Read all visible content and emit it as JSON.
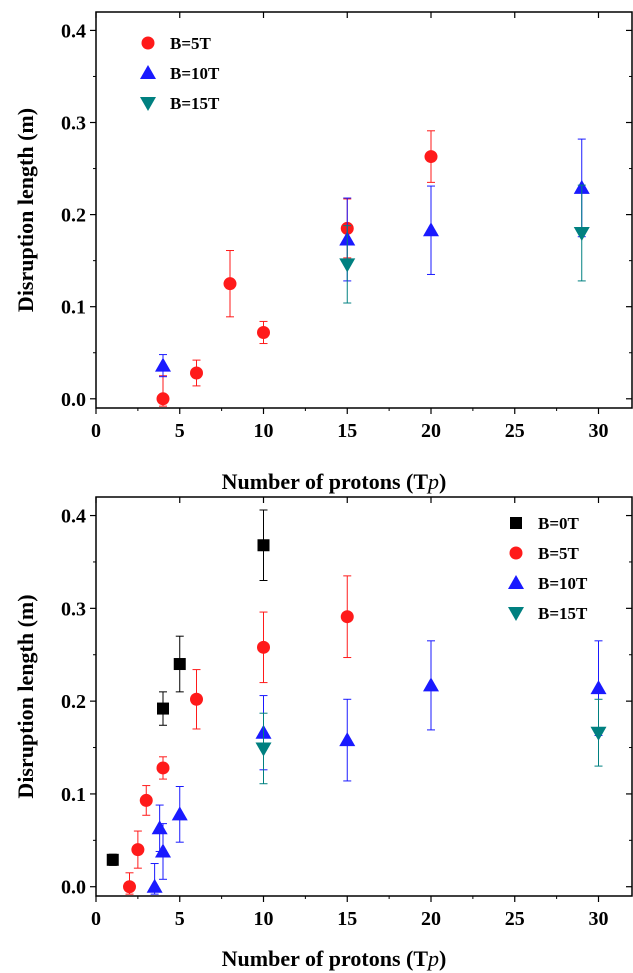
{
  "chart_data": [
    {
      "type": "scatter",
      "xlabel": "Number of protons (T",
      "xlabel_unit": "p",
      "xlabel_close": ")",
      "ylabel": "Disruption length (m)",
      "xlim": [
        0,
        32
      ],
      "ylim": [
        -0.01,
        0.42
      ],
      "xticks": [
        0,
        5,
        10,
        15,
        20,
        25,
        30
      ],
      "yticks": [
        0.0,
        0.1,
        0.2,
        0.3,
        0.4
      ],
      "xtick_labels": [
        "0",
        "5",
        "10",
        "15",
        "20",
        "25",
        "30"
      ],
      "ytick_labels": [
        "0.0",
        "0.1",
        "0.2",
        "0.3",
        "0.4"
      ],
      "legend_position": "top-left",
      "series": [
        {
          "name": "B=5T",
          "marker": "circle",
          "color": "#ff1a1a",
          "points": [
            {
              "x": 4,
              "y": 0.0,
              "err": 0.025
            },
            {
              "x": 6,
              "y": 0.028,
              "err": 0.014
            },
            {
              "x": 8,
              "y": 0.125,
              "err": 0.036
            },
            {
              "x": 10,
              "y": 0.072,
              "err": 0.012
            },
            {
              "x": 15,
              "y": 0.185,
              "err": 0.032
            },
            {
              "x": 20,
              "y": 0.263,
              "err": 0.028
            }
          ]
        },
        {
          "name": "B=10T",
          "marker": "triangle-up",
          "color": "#1a1aff",
          "points": [
            {
              "x": 4,
              "y": 0.036,
              "err": 0.012
            },
            {
              "x": 15,
              "y": 0.173,
              "err": 0.045
            },
            {
              "x": 20,
              "y": 0.183,
              "err": 0.048
            },
            {
              "x": 29,
              "y": 0.229,
              "err": 0.053
            }
          ]
        },
        {
          "name": "B=15T",
          "marker": "triangle-down",
          "color": "#008080",
          "points": [
            {
              "x": 15,
              "y": 0.146,
              "err": 0.042
            },
            {
              "x": 29,
              "y": 0.18,
              "err": 0.052
            }
          ]
        }
      ]
    },
    {
      "type": "scatter",
      "xlabel": "Number of protons (T",
      "xlabel_unit": "p",
      "xlabel_close": ")",
      "ylabel": "Disruption length (m)",
      "xlim": [
        0,
        32
      ],
      "ylim": [
        -0.01,
        0.42
      ],
      "xticks": [
        0,
        5,
        10,
        15,
        20,
        25,
        30
      ],
      "yticks": [
        0.0,
        0.1,
        0.2,
        0.3,
        0.4
      ],
      "xtick_labels": [
        "0",
        "5",
        "10",
        "15",
        "20",
        "25",
        "30"
      ],
      "ytick_labels": [
        "0.0",
        "0.1",
        "0.2",
        "0.3",
        "0.4"
      ],
      "legend_position": "top-right",
      "series": [
        {
          "name": "B=0T",
          "marker": "square",
          "color": "#000000",
          "points": [
            {
              "x": 1,
              "y": 0.029,
              "err": 0.006
            },
            {
              "x": 4,
              "y": 0.192,
              "err": 0.018
            },
            {
              "x": 5,
              "y": 0.24,
              "err": 0.03
            },
            {
              "x": 10,
              "y": 0.368,
              "err": 0.038
            }
          ]
        },
        {
          "name": "B=5T",
          "marker": "circle",
          "color": "#ff1a1a",
          "points": [
            {
              "x": 2,
              "y": 0.0,
              "err": 0.015
            },
            {
              "x": 2.5,
              "y": 0.04,
              "err": 0.02
            },
            {
              "x": 3,
              "y": 0.093,
              "err": 0.016
            },
            {
              "x": 4,
              "y": 0.128,
              "err": 0.012
            },
            {
              "x": 6,
              "y": 0.202,
              "err": 0.032
            },
            {
              "x": 10,
              "y": 0.258,
              "err": 0.038
            },
            {
              "x": 15,
              "y": 0.291,
              "err": 0.044
            }
          ]
        },
        {
          "name": "B=10T",
          "marker": "triangle-up",
          "color": "#1a1aff",
          "points": [
            {
              "x": 3.5,
              "y": 0.0,
              "err": 0.025
            },
            {
              "x": 3.8,
              "y": 0.063,
              "err": 0.025
            },
            {
              "x": 4,
              "y": 0.038,
              "err": 0.03
            },
            {
              "x": 5,
              "y": 0.078,
              "err": 0.03
            },
            {
              "x": 10,
              "y": 0.166,
              "err": 0.04
            },
            {
              "x": 15,
              "y": 0.158,
              "err": 0.044
            },
            {
              "x": 20,
              "y": 0.217,
              "err": 0.048
            },
            {
              "x": 30,
              "y": 0.214,
              "err": 0.051
            }
          ]
        },
        {
          "name": "B=15T",
          "marker": "triangle-down",
          "color": "#008080",
          "points": [
            {
              "x": 10,
              "y": 0.149,
              "err": 0.038
            },
            {
              "x": 30,
              "y": 0.166,
              "err": 0.036
            }
          ]
        }
      ]
    }
  ]
}
